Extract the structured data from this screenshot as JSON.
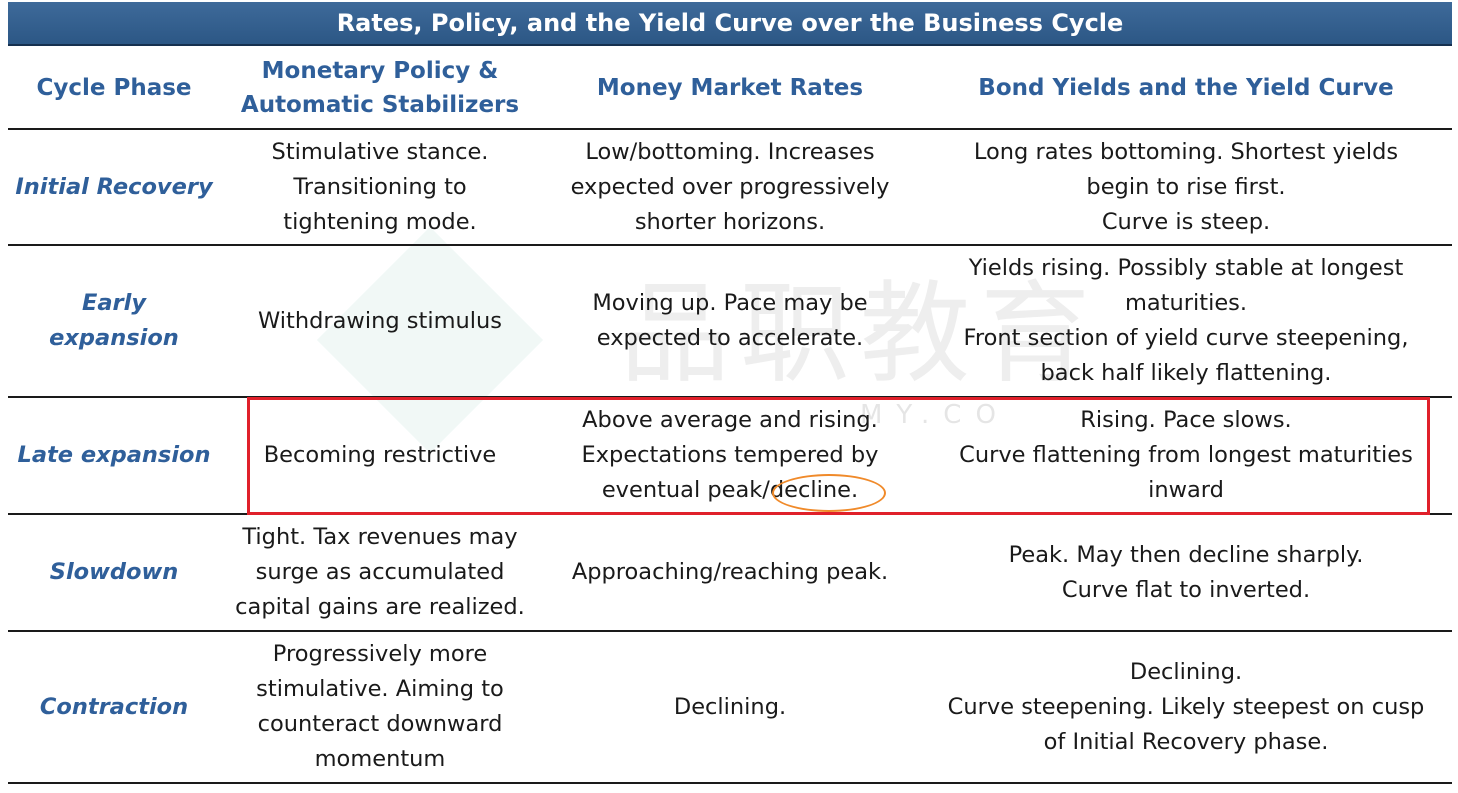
{
  "title": "Rates, Policy, and the Yield Curve over the Business Cycle",
  "watermark": {
    "text": "品职教育",
    "sub": "MY.CO"
  },
  "columns": [
    "Cycle Phase",
    "Monetary Policy &\nAutomatic Stabilizers",
    "Money Market Rates",
    "Bond Yields and the Yield Curve"
  ],
  "rows": [
    {
      "phase": "Initial Recovery",
      "policy": "Stimulative stance.\nTransitioning to\ntightening mode.",
      "money": "Low/bottoming. Increases\nexpected over progressively\nshorter horizons.",
      "bond": "Long rates bottoming. Shortest yields\nbegin to rise first.\nCurve is steep."
    },
    {
      "phase": "Early\nexpansion",
      "policy": "Withdrawing stimulus",
      "money": "Moving up. Pace may be\nexpected to accelerate.",
      "bond": "Yields rising. Possibly stable at longest\nmaturities.\nFront section of yield curve steepening,\nback half likely flattening."
    },
    {
      "phase": "Late expansion",
      "policy": "Becoming restrictive",
      "money": "Above average and rising.\nExpectations tempered by\neventual peak/decline.",
      "bond": "Rising. Pace slows.\nCurve flattening from longest maturities\ninward"
    },
    {
      "phase": "Slowdown",
      "policy": "Tight. Tax revenues may\nsurge as accumulated\ncapital gains are realized.",
      "money": "Approaching/reaching peak.",
      "bond": "Peak. May then decline sharply.\nCurve flat to inverted."
    },
    {
      "phase": "Contraction",
      "policy": "Progressively more\nstimulative. Aiming to\ncounteract downward\nmomentum",
      "money": "Declining.",
      "bond": "Declining.\nCurve steepening. Likely steepest on cusp\nof Initial Recovery phase."
    }
  ],
  "colors": {
    "title_bar": "#2c5785",
    "header_text": "#2f5f9a",
    "highlight_box": "#e0202a",
    "annotation_circle": "#f08a2a"
  }
}
